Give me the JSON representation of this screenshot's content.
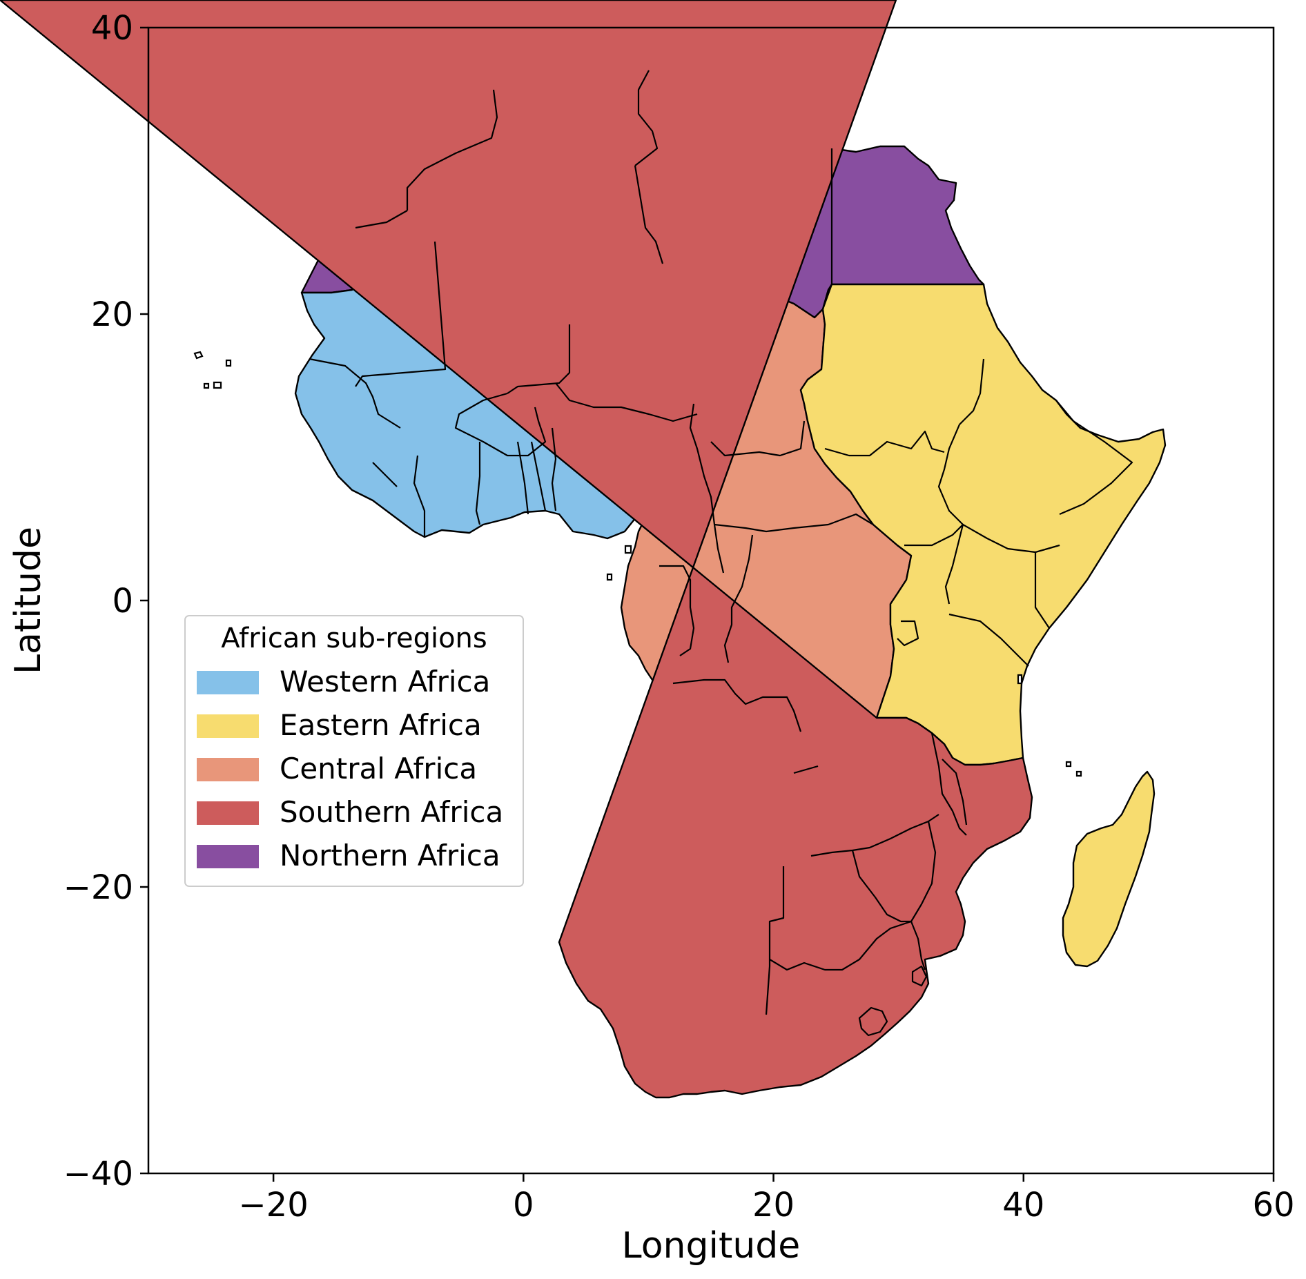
{
  "chart_data": {
    "type": "choropleth-map",
    "xlabel": "Longitude",
    "ylabel": "Latitude",
    "xlim": [
      -30,
      60
    ],
    "ylim": [
      -40,
      40
    ],
    "x_ticks": [
      -20,
      0,
      20,
      40,
      60
    ],
    "y_ticks": [
      40,
      20,
      0,
      -20,
      -40
    ],
    "x_tick_labels": [
      "−20",
      "0",
      "20",
      "40",
      "60"
    ],
    "y_tick_labels": [
      "40",
      "20",
      "0",
      "−20",
      "−40"
    ],
    "grid": false,
    "legend": {
      "title": "African sub-regions",
      "placement": "center-left",
      "entries": [
        {
          "name": "Western Africa",
          "color": "#85c1e9"
        },
        {
          "name": "Eastern Africa",
          "color": "#f7dc6f"
        },
        {
          "name": "Central Africa",
          "color": "#e8967a"
        },
        {
          "name": "Southern Africa",
          "color": "#cd5c5c"
        },
        {
          "name": "Northern Africa",
          "color": "#884ea0"
        }
      ]
    },
    "regions": [
      {
        "name": "Western Africa",
        "color": "#85c1e9"
      },
      {
        "name": "Eastern Africa",
        "color": "#f7dc6f"
      },
      {
        "name": "Central Africa",
        "color": "#e8967a"
      },
      {
        "name": "Southern Africa",
        "color": "#cd5c5c"
      },
      {
        "name": "Northern Africa",
        "color": "#884ea0"
      }
    ]
  }
}
